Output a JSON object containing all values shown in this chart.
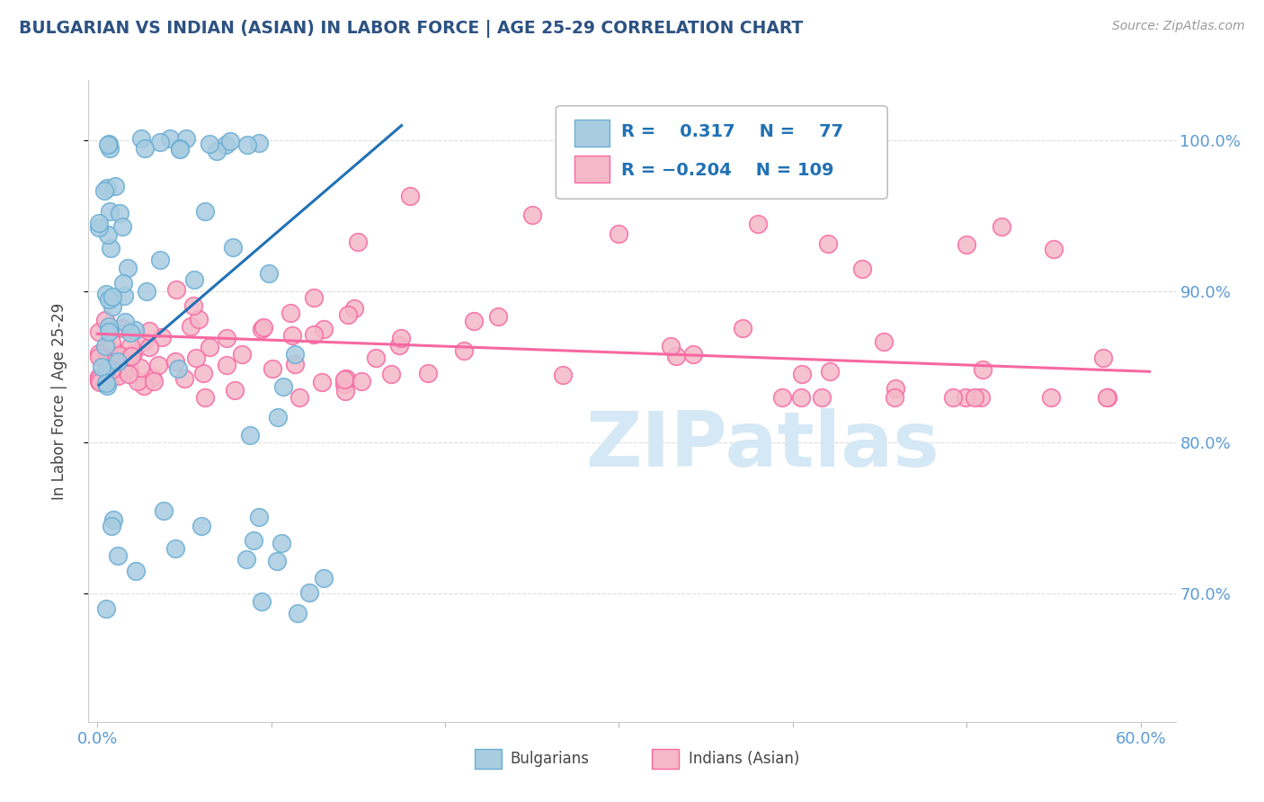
{
  "title": "BULGARIAN VS INDIAN (ASIAN) IN LABOR FORCE | AGE 25-29 CORRELATION CHART",
  "source_text": "Source: ZipAtlas.com",
  "ylabel": "In Labor Force | Age 25-29",
  "xlim": [
    -0.005,
    0.62
  ],
  "ylim": [
    0.615,
    1.04
  ],
  "xticks": [
    0.0,
    0.1,
    0.2,
    0.3,
    0.4,
    0.5,
    0.6
  ],
  "xticklabels": [
    "0.0%",
    "",
    "",
    "",
    "",
    "",
    "60.0%"
  ],
  "yticks": [
    0.7,
    0.8,
    0.9,
    1.0
  ],
  "yticklabels": [
    "70.0%",
    "80.0%",
    "90.0%",
    "100.0%"
  ],
  "blue_scatter_color": "#a8cce0",
  "blue_edge_color": "#6baed6",
  "pink_scatter_color": "#f4b8c8",
  "pink_edge_color": "#f768a1",
  "blue_line_color": "#2171b5",
  "pink_line_color": "#f768a1",
  "title_color": "#2c5282",
  "axis_label_color": "#444444",
  "tick_color": "#5b9bd5",
  "grid_color": "#dddddd",
  "watermark_color": "#d5e8f5",
  "bg_color": "#ffffff",
  "legend_text_color": "#2171b5",
  "legend_label_color": "#333333",
  "blue_trend_x": [
    0.001,
    0.175
  ],
  "blue_trend_y": [
    0.838,
    1.01
  ],
  "pink_trend_x": [
    0.0,
    0.605
  ],
  "pink_trend_y": [
    0.872,
    0.847
  ]
}
